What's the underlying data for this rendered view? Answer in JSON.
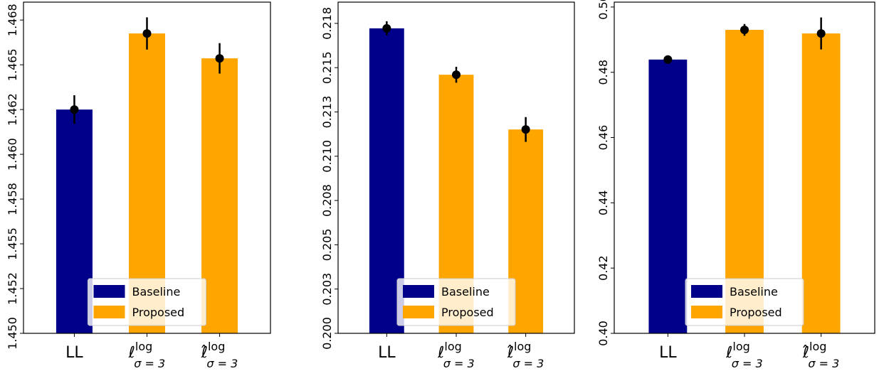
{
  "chart_data": [
    {
      "type": "bar",
      "categories": [
        "LL",
        "ℓ",
        "ℓ̂"
      ],
      "category_superscripts": [
        null,
        "log",
        "log"
      ],
      "category_subscripts": [
        null,
        "σ = 3",
        "σ = 3"
      ],
      "series": [
        {
          "name": "Baseline",
          "color": "#00008b",
          "values": [
            1.4625,
            null,
            null
          ],
          "errors": [
            0.0008,
            null,
            null
          ]
        },
        {
          "name": "Proposed",
          "color": "#ffa500",
          "values": [
            null,
            1.46675,
            1.46536
          ],
          "errors": [
            null,
            0.0009,
            0.00085
          ]
        }
      ],
      "ylim": [
        1.45,
        1.4685
      ],
      "yticks": [
        {
          "value": 1.45,
          "label": "1.450"
        },
        {
          "value": 1.4525,
          "label": "1.452"
        },
        {
          "value": 1.455,
          "label": "1.455"
        },
        {
          "value": 1.4575,
          "label": "1.458"
        },
        {
          "value": 1.46,
          "label": "1.460"
        },
        {
          "value": 1.4625,
          "label": "1.462"
        },
        {
          "value": 1.465,
          "label": "1.465"
        },
        {
          "value": 1.4675,
          "label": "1.468"
        }
      ],
      "legend": "lower center"
    },
    {
      "type": "bar",
      "categories": [
        "LL",
        "ℓ",
        "ℓ̂"
      ],
      "category_superscripts": [
        null,
        "log",
        "log"
      ],
      "category_subscripts": [
        null,
        "σ = 3",
        "σ = 3"
      ],
      "series": [
        {
          "name": "Baseline",
          "color": "#00008b",
          "values": [
            0.21722,
            null,
            null
          ],
          "errors": [
            0.0004,
            null,
            null
          ]
        },
        {
          "name": "Proposed",
          "color": "#ffa500",
          "values": [
            null,
            0.2146,
            0.21151
          ],
          "errors": [
            null,
            0.00045,
            0.0007
          ]
        }
      ],
      "ylim": [
        0.2,
        0.2187
      ],
      "yticks": [
        {
          "value": 0.2,
          "label": "0.200"
        },
        {
          "value": 0.2025,
          "label": "0.203"
        },
        {
          "value": 0.205,
          "label": "0.205"
        },
        {
          "value": 0.2075,
          "label": "0.208"
        },
        {
          "value": 0.21,
          "label": "0.210"
        },
        {
          "value": 0.2125,
          "label": "0.213"
        },
        {
          "value": 0.215,
          "label": "0.215"
        },
        {
          "value": 0.2175,
          "label": "0.218"
        }
      ],
      "legend": "lower center"
    },
    {
      "type": "bar",
      "categories": [
        "LL",
        "ℓ",
        "ℓ̂"
      ],
      "category_superscripts": [
        null,
        "log",
        "log"
      ],
      "category_subscripts": [
        null,
        "σ = 3",
        "σ = 3"
      ],
      "series": [
        {
          "name": "Baseline",
          "color": "#00008b",
          "values": [
            0.4839,
            null,
            null
          ],
          "errors": [
            0.0007,
            null,
            null
          ]
        },
        {
          "name": "Proposed",
          "color": "#ffa500",
          "values": [
            null,
            0.493,
            0.4919
          ],
          "errors": [
            null,
            0.0018,
            0.0049
          ]
        }
      ],
      "ylim": [
        0.4,
        0.5015
      ],
      "yticks": [
        {
          "value": 0.4,
          "label": "0.40"
        },
        0.42,
        0.44,
        0.46,
        0.48,
        {
          "value": 0.5,
          "label": "0.50"
        }
      ],
      "legend": "lower center"
    }
  ]
}
